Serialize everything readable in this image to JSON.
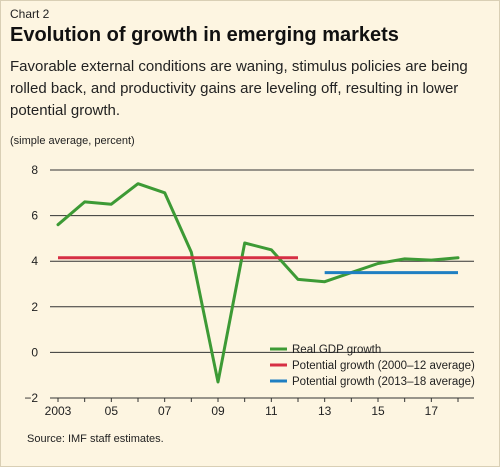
{
  "header": {
    "chart_label": "Chart 2",
    "title": "Evolution of growth in emerging markets",
    "subtitle": "Favorable external conditions are waning, stimulus policies are being rolled back, and productivity gains are leveling off, resulting in lower potential growth.",
    "units": "(simple average, percent)"
  },
  "footer": {
    "source": "Source: IMF staff estimates."
  },
  "colors": {
    "real_gdp": "#3d9a35",
    "potential_2000_12": "#d62f44",
    "potential_2013_18": "#1f7fc2",
    "gridline": "#333333",
    "background": "#fdf5e1"
  },
  "chart_data": {
    "type": "line",
    "ylim": [
      -2,
      8
    ],
    "yticks": [
      "8",
      "6",
      "4",
      "2",
      "0",
      "−2"
    ],
    "ytick_values": [
      8,
      6,
      4,
      2,
      0,
      -2
    ],
    "xlim": [
      2002.7,
      2018.6
    ],
    "xtick_labels": [
      {
        "year": 2003,
        "label": "2003"
      },
      {
        "year": 2005,
        "label": "05"
      },
      {
        "year": 2007,
        "label": "07"
      },
      {
        "year": 2009,
        "label": "09"
      },
      {
        "year": 2011,
        "label": "11"
      },
      {
        "year": 2013,
        "label": "13"
      },
      {
        "year": 2015,
        "label": "15"
      },
      {
        "year": 2017,
        "label": "17"
      }
    ],
    "grid": true,
    "legend_position": "bottom-right",
    "series": [
      {
        "name": "Real GDP growth",
        "kind": "line",
        "x": [
          2003,
          2004,
          2005,
          2006,
          2007,
          2008,
          2009,
          2010,
          2011,
          2012,
          2013,
          2014,
          2015,
          2016,
          2017,
          2018
        ],
        "y": [
          5.6,
          6.6,
          6.5,
          7.4,
          7.0,
          4.4,
          -1.3,
          4.8,
          4.5,
          3.2,
          3.1,
          3.5,
          3.9,
          4.1,
          4.05,
          4.15
        ]
      },
      {
        "name": "Potential growth (2000–12 average)",
        "kind": "hline",
        "x": [
          2003,
          2012
        ],
        "value": 4.15
      },
      {
        "name": "Potential growth (2013–18 average)",
        "kind": "hline",
        "x": [
          2013,
          2018
        ],
        "value": 3.5
      }
    ]
  }
}
